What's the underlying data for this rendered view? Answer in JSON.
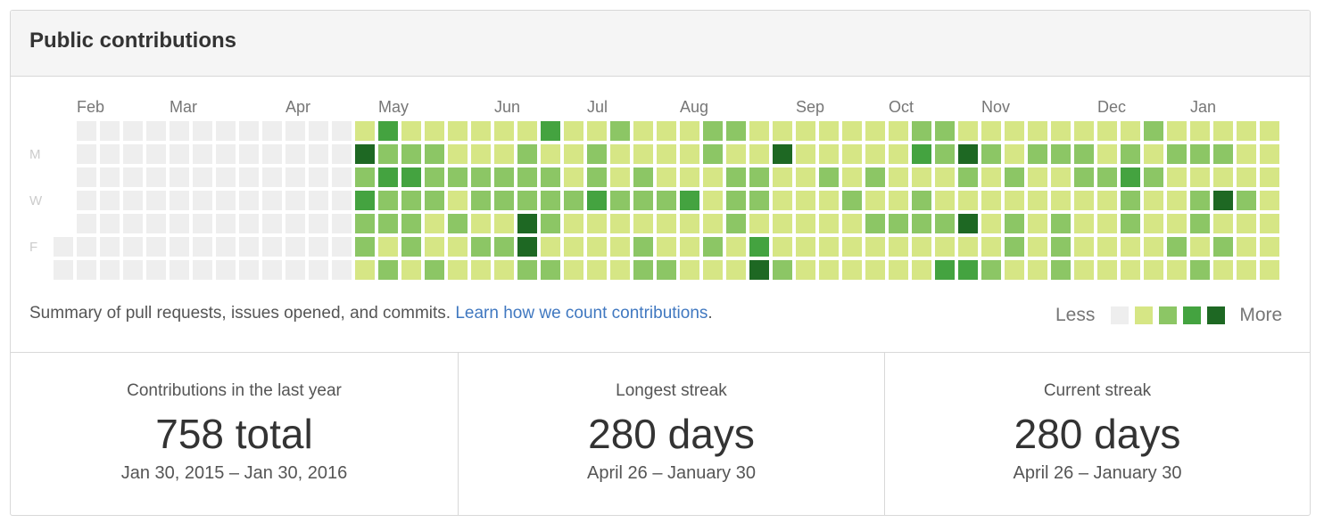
{
  "header": {
    "title": "Public contributions"
  },
  "calendar": {
    "level_colors": [
      "#eeeeee",
      "#d6e685",
      "#8cc665",
      "#44a340",
      "#1e6823"
    ],
    "day_labels": [
      null,
      "M",
      null,
      "W",
      null,
      "F",
      null
    ],
    "weeks": [
      {
        "label": null,
        "days": [
          null,
          null,
          null,
          null,
          null,
          0,
          0
        ]
      },
      {
        "label": "Feb",
        "days": [
          0,
          0,
          0,
          0,
          0,
          0,
          0
        ]
      },
      {
        "label": null,
        "days": [
          0,
          0,
          0,
          0,
          0,
          0,
          0
        ]
      },
      {
        "label": null,
        "days": [
          0,
          0,
          0,
          0,
          0,
          0,
          0
        ]
      },
      {
        "label": null,
        "days": [
          0,
          0,
          0,
          0,
          0,
          0,
          0
        ]
      },
      {
        "label": "Mar",
        "days": [
          0,
          0,
          0,
          0,
          0,
          0,
          0
        ]
      },
      {
        "label": null,
        "days": [
          0,
          0,
          0,
          0,
          0,
          0,
          0
        ]
      },
      {
        "label": null,
        "days": [
          0,
          0,
          0,
          0,
          0,
          0,
          0
        ]
      },
      {
        "label": null,
        "days": [
          0,
          0,
          0,
          0,
          0,
          0,
          0
        ]
      },
      {
        "label": null,
        "days": [
          0,
          0,
          0,
          0,
          0,
          0,
          0
        ]
      },
      {
        "label": "Apr",
        "days": [
          0,
          0,
          0,
          0,
          0,
          0,
          0
        ]
      },
      {
        "label": null,
        "days": [
          0,
          0,
          0,
          0,
          0,
          0,
          0
        ]
      },
      {
        "label": null,
        "days": [
          0,
          0,
          0,
          0,
          0,
          0,
          0
        ]
      },
      {
        "label": null,
        "days": [
          1,
          4,
          2,
          3,
          2,
          2,
          1
        ]
      },
      {
        "label": "May",
        "days": [
          3,
          2,
          3,
          2,
          2,
          1,
          2
        ]
      },
      {
        "label": null,
        "days": [
          1,
          2,
          3,
          2,
          2,
          2,
          1
        ]
      },
      {
        "label": null,
        "days": [
          1,
          2,
          2,
          2,
          1,
          1,
          2
        ]
      },
      {
        "label": null,
        "days": [
          1,
          1,
          2,
          1,
          2,
          1,
          1
        ]
      },
      {
        "label": null,
        "days": [
          1,
          1,
          2,
          2,
          1,
          2,
          1
        ]
      },
      {
        "label": "Jun",
        "days": [
          1,
          1,
          2,
          2,
          1,
          2,
          1
        ]
      },
      {
        "label": null,
        "days": [
          1,
          2,
          2,
          2,
          4,
          4,
          2
        ]
      },
      {
        "label": null,
        "days": [
          3,
          1,
          2,
          2,
          2,
          1,
          2
        ]
      },
      {
        "label": null,
        "days": [
          1,
          1,
          1,
          2,
          1,
          1,
          1
        ]
      },
      {
        "label": "Jul",
        "days": [
          1,
          2,
          2,
          3,
          1,
          1,
          1
        ]
      },
      {
        "label": null,
        "days": [
          2,
          1,
          1,
          2,
          1,
          1,
          1
        ]
      },
      {
        "label": null,
        "days": [
          1,
          1,
          2,
          2,
          1,
          2,
          2
        ]
      },
      {
        "label": null,
        "days": [
          1,
          1,
          1,
          2,
          1,
          1,
          2
        ]
      },
      {
        "label": "Aug",
        "days": [
          1,
          1,
          1,
          3,
          1,
          1,
          1
        ]
      },
      {
        "label": null,
        "days": [
          2,
          2,
          1,
          1,
          1,
          2,
          1
        ]
      },
      {
        "label": null,
        "days": [
          2,
          1,
          2,
          2,
          2,
          1,
          1
        ]
      },
      {
        "label": null,
        "days": [
          1,
          1,
          2,
          2,
          1,
          3,
          4
        ]
      },
      {
        "label": null,
        "days": [
          1,
          4,
          1,
          1,
          1,
          1,
          2
        ]
      },
      {
        "label": "Sep",
        "days": [
          1,
          1,
          1,
          1,
          1,
          1,
          1
        ]
      },
      {
        "label": null,
        "days": [
          1,
          1,
          2,
          1,
          1,
          1,
          1
        ]
      },
      {
        "label": null,
        "days": [
          1,
          1,
          1,
          2,
          1,
          1,
          1
        ]
      },
      {
        "label": null,
        "days": [
          1,
          1,
          2,
          1,
          2,
          1,
          1
        ]
      },
      {
        "label": "Oct",
        "days": [
          1,
          1,
          1,
          1,
          2,
          1,
          1
        ]
      },
      {
        "label": null,
        "days": [
          2,
          3,
          1,
          2,
          2,
          1,
          1
        ]
      },
      {
        "label": null,
        "days": [
          2,
          2,
          1,
          1,
          2,
          1,
          3
        ]
      },
      {
        "label": null,
        "days": [
          1,
          4,
          2,
          1,
          4,
          1,
          3
        ]
      },
      {
        "label": "Nov",
        "days": [
          1,
          2,
          1,
          1,
          1,
          1,
          2
        ]
      },
      {
        "label": null,
        "days": [
          1,
          1,
          2,
          1,
          2,
          2,
          1
        ]
      },
      {
        "label": null,
        "days": [
          1,
          2,
          1,
          1,
          1,
          1,
          1
        ]
      },
      {
        "label": null,
        "days": [
          1,
          2,
          1,
          1,
          2,
          2,
          2
        ]
      },
      {
        "label": null,
        "days": [
          1,
          2,
          2,
          1,
          1,
          1,
          1
        ]
      },
      {
        "label": "Dec",
        "days": [
          1,
          1,
          2,
          1,
          1,
          1,
          1
        ]
      },
      {
        "label": null,
        "days": [
          1,
          2,
          3,
          2,
          2,
          1,
          1
        ]
      },
      {
        "label": null,
        "days": [
          2,
          1,
          2,
          1,
          1,
          1,
          1
        ]
      },
      {
        "label": null,
        "days": [
          1,
          2,
          1,
          1,
          1,
          2,
          1
        ]
      },
      {
        "label": "Jan",
        "days": [
          1,
          2,
          1,
          2,
          2,
          1,
          2
        ]
      },
      {
        "label": null,
        "days": [
          1,
          2,
          1,
          4,
          1,
          2,
          1
        ]
      },
      {
        "label": null,
        "days": [
          1,
          1,
          1,
          2,
          1,
          1,
          1
        ]
      },
      {
        "label": null,
        "days": [
          1,
          1,
          1,
          1,
          1,
          1,
          1
        ]
      }
    ],
    "summary": "Summary of pull requests, issues opened, and commits.",
    "link": "Learn how we count contributions",
    "link_suffix": ".",
    "legend_less": "Less",
    "legend_more": "More"
  },
  "stats": [
    {
      "label": "Contributions in the last year",
      "value": "758 total",
      "range": "Jan 30, 2015 – Jan 30, 2016"
    },
    {
      "label": "Longest streak",
      "value": "280 days",
      "range": "April 26 – January 30"
    },
    {
      "label": "Current streak",
      "value": "280 days",
      "range": "April 26 – January 30"
    }
  ]
}
